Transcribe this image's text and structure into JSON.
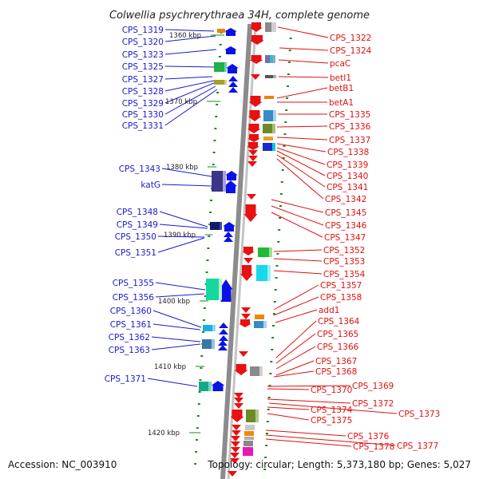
{
  "title": "Colwellia psychrerythraea 34H, complete genome",
  "accession": "Accession: NC_003910",
  "topology": "Topology: circular; Length: 5,373,180 bp; Genes: 5,027",
  "colors": {
    "left_label": "#1a1acc",
    "right_label": "#e01010",
    "forward": "#0a12e6",
    "reverse": "#e81010",
    "tick": "#1a8a1a"
  },
  "kbp_labels": [
    "1360 kbp",
    "1370 kbp",
    "1380 kbp",
    "1390 kbp",
    "1400 kbp",
    "1410 kbp",
    "1420 kbp"
  ],
  "left_genes": [
    "CPS_1319",
    "CPS_1320",
    "CPS_1323",
    "CPS_1325",
    "CPS_1327",
    "CPS_1328",
    "CPS_1329",
    "CPS_1330",
    "CPS_1331",
    "CPS_1343",
    "katG",
    "CPS_1348",
    "CPS_1349",
    "CPS_1350",
    "CPS_1351",
    "CPS_1355",
    "CPS_1356",
    "CPS_1360",
    "CPS_1361",
    "CPS_1362",
    "CPS_1363",
    "CPS_1371"
  ],
  "right_genes": [
    "CPS_1322",
    "CPS_1324",
    "pcaC",
    "betI1",
    "betB1",
    "betA1",
    "CPS_1335",
    "CPS_1336",
    "CPS_1337",
    "CPS_1338",
    "CPS_1339",
    "CPS_1340",
    "CPS_1341",
    "CPS_1342",
    "CPS_1345",
    "CPS_1346",
    "CPS_1347",
    "CPS_1352",
    "CPS_1353",
    "CPS_1354",
    "CPS_1357",
    "CPS_1358",
    "add1",
    "CPS_1364",
    "CPS_1365",
    "CPS_1366",
    "CPS_1367",
    "CPS_1368",
    "CPS_1369",
    "CPS_1370",
    "CPS_1372",
    "CPS_1373",
    "CPS_1374",
    "CPS_1375",
    "CPS_1376",
    "CPS_1377",
    "CPS_1378"
  ]
}
